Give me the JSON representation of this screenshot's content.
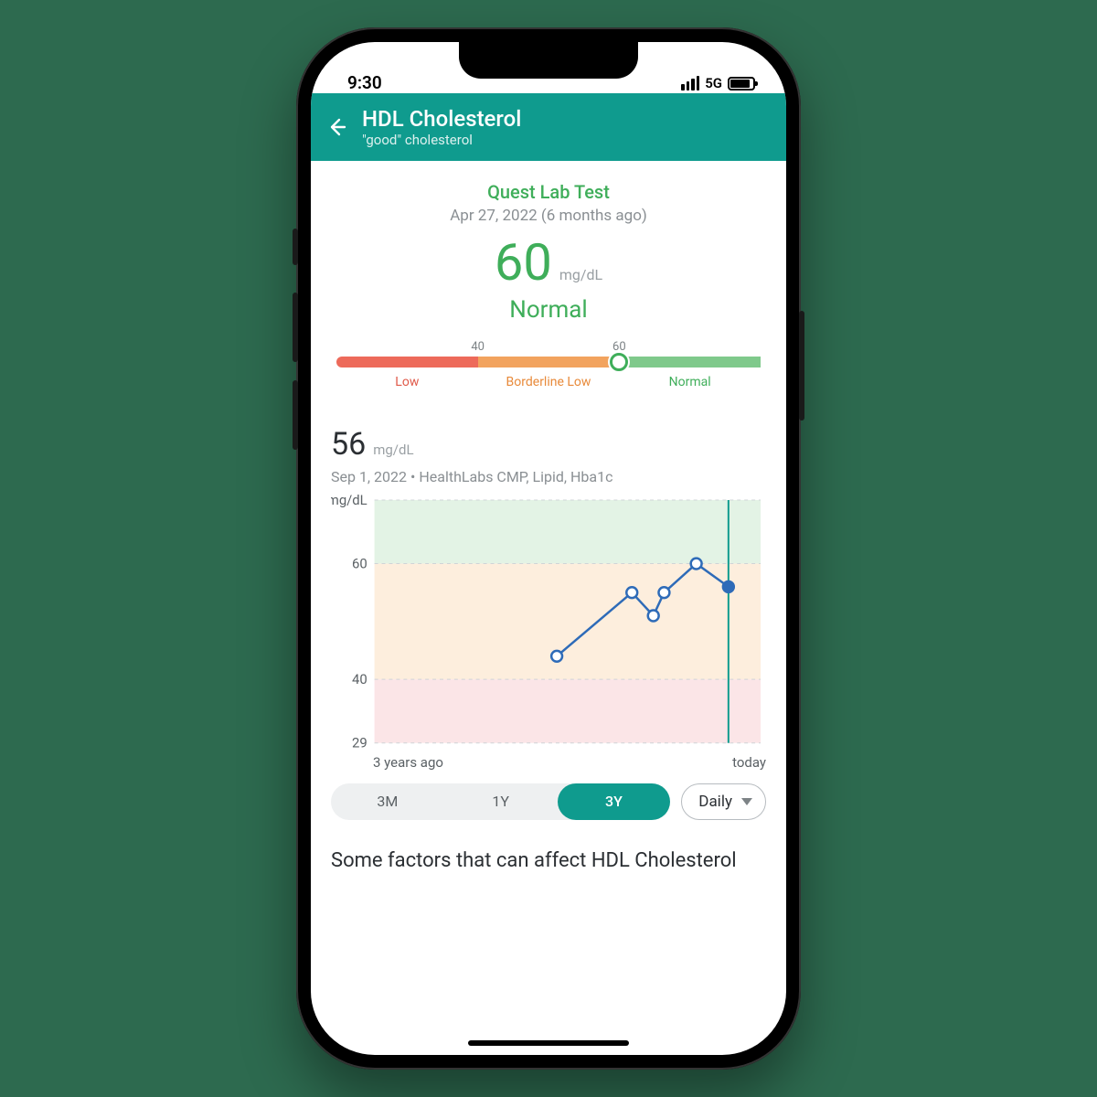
{
  "colors": {
    "page_bg": "#2d6a4f",
    "accent": "#0f9b8e",
    "green": "#3fae5a",
    "text_muted": "#8a8f93",
    "text_body": "#2b2f33",
    "range_low": "#ed6a5a",
    "range_mid": "#f2a35e",
    "range_high": "#7fc98b",
    "chart_band_high": "#e3f3e5",
    "chart_band_mid": "#fdeedd",
    "chart_band_low": "#fbe5e7",
    "chart_line": "#2e6bb8",
    "chart_grid": "#cfd4d7",
    "chart_cursor": "#0f9b8e"
  },
  "status_bar": {
    "time": "9:30",
    "network": "5G"
  },
  "header": {
    "title": "HDL Cholesterol",
    "subtitle": "\"good\" cholesterol"
  },
  "summary": {
    "lab_name": "Quest Lab Test",
    "date_line": "Apr 27, 2022 (6 months ago)",
    "value": "60",
    "unit": "mg/dL",
    "status": "Normal"
  },
  "range_bar": {
    "domain_min": 20,
    "domain_max": 80,
    "ticks": [
      40,
      60
    ],
    "marker_value": 60,
    "segments": [
      {
        "label": "Low",
        "from": 20,
        "to": 40,
        "color": "#ed6a5a",
        "label_color": "#e05a4a"
      },
      {
        "label": "Borderline Low",
        "from": 40,
        "to": 60,
        "color": "#f2a35e",
        "label_color": "#e88a3a"
      },
      {
        "label": "Normal",
        "from": 60,
        "to": 80,
        "color": "#7fc98b",
        "label_color": "#3fae5a"
      }
    ]
  },
  "chart": {
    "header_value": "56",
    "header_unit": "mg/dL",
    "meta_line": "Sep 1, 2022  •  HealthLabs CMP, Lipid, Hba1c",
    "y_min": 29,
    "y_max": 71,
    "y_unit": "mg/dL",
    "y_gridlines": [
      29,
      40,
      60,
      71
    ],
    "bands": [
      {
        "from": 60,
        "to": 71,
        "color": "#e3f3e5"
      },
      {
        "from": 40,
        "to": 60,
        "color": "#fdeedd"
      },
      {
        "from": 29,
        "to": 40,
        "color": "#fbe5e7"
      }
    ],
    "x_domain": [
      0,
      36
    ],
    "points": [
      {
        "x": 17,
        "y": 44
      },
      {
        "x": 24,
        "y": 55
      },
      {
        "x": 26,
        "y": 51
      },
      {
        "x": 27,
        "y": 55
      },
      {
        "x": 30,
        "y": 60
      },
      {
        "x": 33,
        "y": 56
      }
    ],
    "selected_index": 5,
    "line_color": "#2e6bb8",
    "line_width": 2.5,
    "marker_radius": 6,
    "marker_stroke": "#2e6bb8",
    "marker_fill": "#ffffff",
    "selected_fill": "#2e6bb8",
    "cursor_color": "#0f9b8e",
    "x_labels": {
      "left": "3 years ago",
      "right": "today"
    }
  },
  "range_selector": {
    "options": [
      "3M",
      "1Y",
      "3Y"
    ],
    "active_index": 2,
    "dropdown_value": "Daily"
  },
  "footer": {
    "heading": "Some factors that can affect HDL Cholesterol"
  }
}
